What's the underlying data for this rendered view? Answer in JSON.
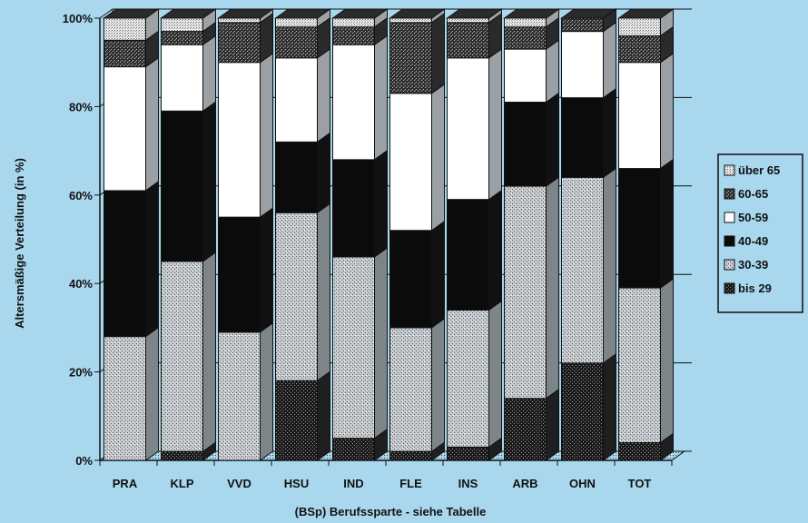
{
  "chart_data": {
    "type": "bar",
    "stacked": true,
    "style": "3d",
    "ylabel": "Altersmäßige Verteilung (in %)",
    "xlabel": "(BSp) Berufssparte - siehe Tabelle",
    "ylim": [
      0,
      100
    ],
    "yticks": [
      "0%",
      "20%",
      "40%",
      "60%",
      "80%",
      "100%"
    ],
    "yticks_values": [
      0,
      20,
      40,
      60,
      80,
      100
    ],
    "categories": [
      "PRA",
      "KLP",
      "VVD",
      "HSU",
      "IND",
      "FLE",
      "INS",
      "ARB",
      "OHN",
      "TOT"
    ],
    "series": [
      {
        "name": "bis 29",
        "values": [
          0,
          2,
          0,
          18,
          5,
          2,
          3,
          14,
          22,
          4
        ]
      },
      {
        "name": "30-39",
        "values": [
          28,
          43,
          29,
          38,
          41,
          28,
          31,
          48,
          42,
          35
        ]
      },
      {
        "name": "40-49",
        "values": [
          33,
          34,
          26,
          16,
          22,
          22,
          25,
          19,
          18,
          27
        ]
      },
      {
        "name": "50-59",
        "values": [
          28,
          15,
          35,
          19,
          26,
          31,
          32,
          12,
          15,
          24
        ]
      },
      {
        "name": "60-65",
        "values": [
          6,
          3,
          9,
          7,
          4,
          16,
          8,
          5,
          3,
          6
        ]
      },
      {
        "name": "über 65",
        "values": [
          5,
          3,
          1,
          2,
          2,
          1,
          1,
          2,
          0,
          4
        ]
      }
    ],
    "legend_order": [
      "über 65",
      "60-65",
      "50-59",
      "40-49",
      "30-39",
      "bis 29"
    ],
    "legend_position": "right",
    "colors": {
      "background": "#a9d8ee",
      "bis 29": "#1b1b1b",
      "30-39": "#b6bdc2",
      "40-49": "#0b0b0b",
      "50-59": "#ffffff",
      "60-65": "#3a3a3a",
      "über 65": "#cfd3d6",
      "gridline": "#111111"
    }
  }
}
